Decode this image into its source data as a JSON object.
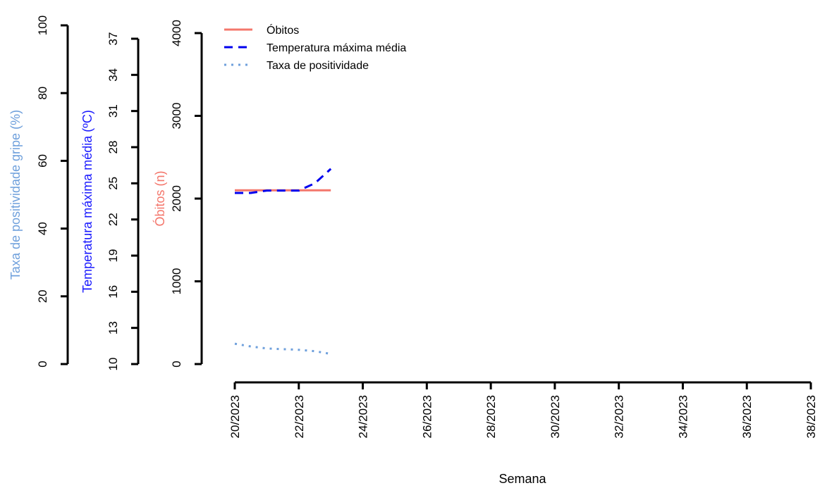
{
  "chart_data": {
    "type": "line",
    "xlabel": "Semana",
    "x_ticks": [
      "20/2023",
      "22/2023",
      "24/2023",
      "26/2023",
      "28/2023",
      "30/2023",
      "32/2023",
      "34/2023",
      "36/2023",
      "38/2023"
    ],
    "x_range": [
      20,
      38
    ],
    "axes": [
      {
        "key": "gripe",
        "label": "Taxa de positividade gripe (%)",
        "color": "#6fa0dc",
        "range": [
          0,
          100
        ],
        "ticks": [
          0,
          20,
          40,
          60,
          80,
          100
        ]
      },
      {
        "key": "temp",
        "label": "Temperatura máxima média (ºC)",
        "color": "#1a1aff",
        "range": [
          10,
          37
        ],
        "ticks": [
          10,
          13,
          16,
          19,
          22,
          25,
          28,
          31,
          34,
          37
        ]
      },
      {
        "key": "obitos",
        "label": "Óbitos (n)",
        "color": "#f4776c",
        "range": [
          0,
          4000
        ],
        "ticks": [
          0,
          1000,
          2000,
          3000,
          4000
        ]
      }
    ],
    "series": [
      {
        "name": "Óbitos",
        "axis": "obitos",
        "color": "#f4776c",
        "style": "solid",
        "x": [
          20,
          23
        ],
        "values": [
          2100,
          2100
        ]
      },
      {
        "name": "Temperatura máxima média",
        "axis": "temp",
        "color": "#0000ee",
        "style": "dashed",
        "x": [
          20,
          20.5,
          21,
          21.5,
          22,
          22.5,
          23
        ],
        "values": [
          24.2,
          24.2,
          24.4,
          24.4,
          24.4,
          25.0,
          26.2
        ]
      },
      {
        "name": "Taxa de positividade",
        "axis": "gripe",
        "color": "#6fa0dc",
        "style": "dotted",
        "x": [
          20,
          20.5,
          21,
          21.5,
          22,
          22.5,
          23
        ],
        "values": [
          6.0,
          5.2,
          4.6,
          4.4,
          4.2,
          3.8,
          3.0
        ]
      }
    ],
    "legend_position": "top-left",
    "grid": false
  }
}
